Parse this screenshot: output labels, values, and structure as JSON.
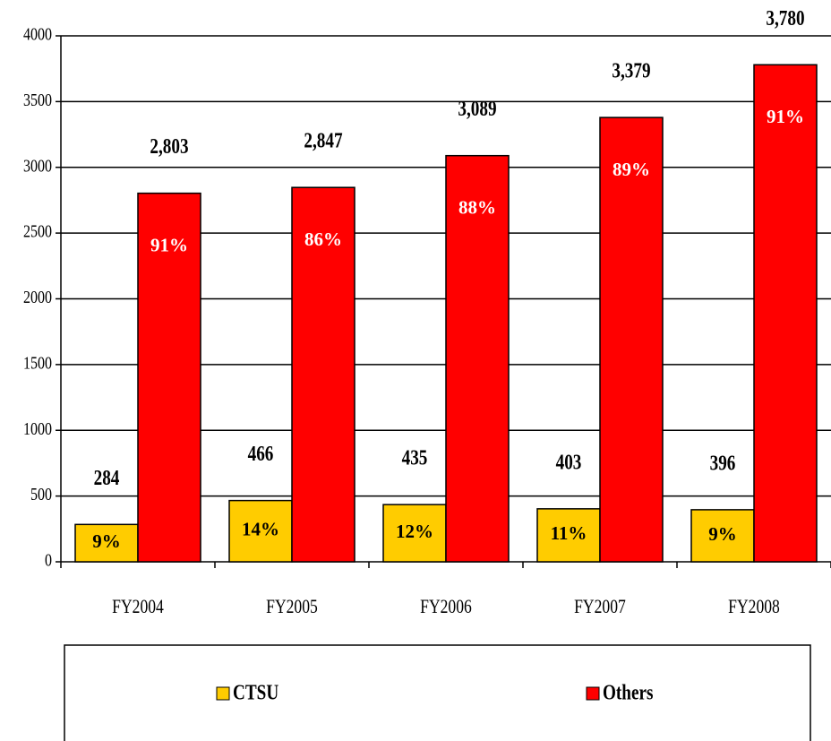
{
  "chart_data": {
    "type": "bar",
    "categories": [
      "FY2004",
      "FY2005",
      "FY2006",
      "FY2007",
      "FY2008"
    ],
    "series": [
      {
        "name": "CTSU",
        "color": "#FFCC00",
        "values": [
          284,
          466,
          435,
          403,
          396
        ],
        "share_labels": [
          "9%",
          "14%",
          "12%",
          "11%",
          "9%"
        ]
      },
      {
        "name": "Others",
        "color": "#FF0000",
        "values": [
          2803,
          2847,
          3089,
          3379,
          3780
        ],
        "value_labels": [
          "2,803",
          "2,847",
          "3,089",
          "3,379",
          "3,780"
        ],
        "share_labels": [
          "91%",
          "86%",
          "88%",
          "89%",
          "91%"
        ]
      }
    ],
    "ylim": [
      0,
      4000
    ],
    "yticks": [
      0,
      500,
      1000,
      1500,
      2000,
      2500,
      3000,
      3500,
      4000
    ],
    "grid": true,
    "legend": "bottom"
  }
}
